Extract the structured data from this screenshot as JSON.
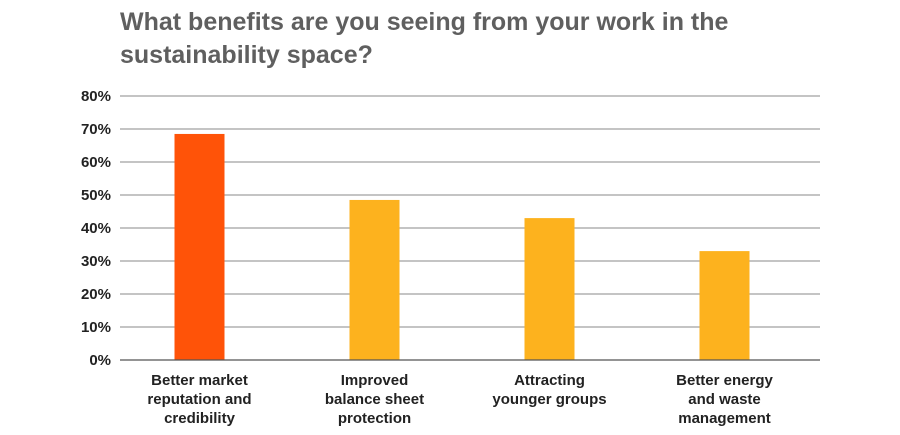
{
  "chart_data": {
    "type": "bar",
    "title": "What benefits are you seeing from your work in the sustainability space?",
    "categories": [
      [
        "Better market",
        "reputation and",
        "credibility"
      ],
      [
        "Improved",
        "balance sheet",
        "protection"
      ],
      [
        "Attracting",
        "younger groups"
      ],
      [
        "Better energy",
        "and waste",
        "management"
      ]
    ],
    "values": [
      68.5,
      48.5,
      43,
      33
    ],
    "bar_colors": [
      "#ff5308",
      "#fdb21e",
      "#fdb21e",
      "#fdb21e"
    ],
    "ylim": [
      0,
      80
    ],
    "yticks": [
      0,
      10,
      20,
      30,
      40,
      50,
      60,
      70,
      80
    ],
    "ytick_labels": [
      "0%",
      "10%",
      "20%",
      "30%",
      "40%",
      "50%",
      "60%",
      "70%",
      "80%"
    ],
    "grid": true,
    "legend": "none"
  }
}
